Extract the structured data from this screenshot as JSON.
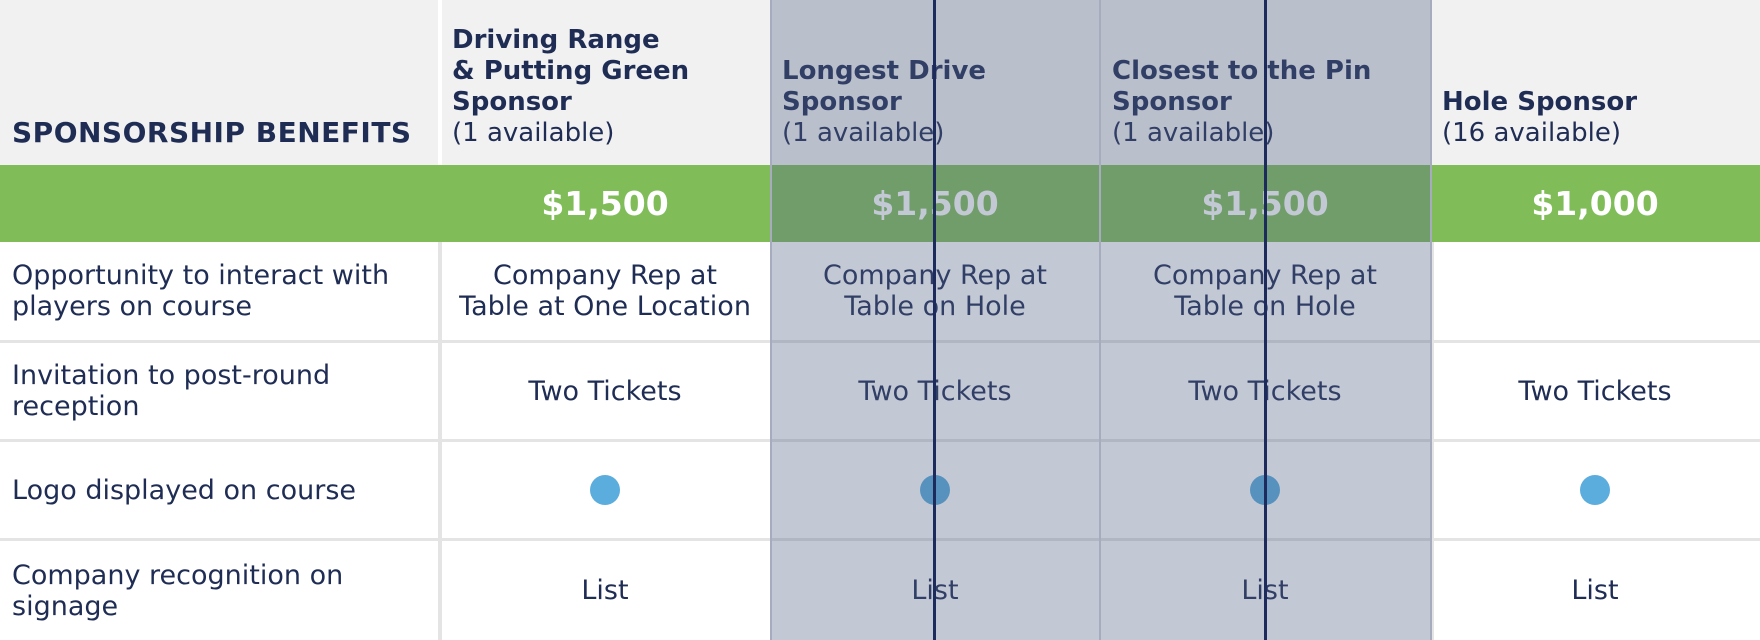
{
  "header": {
    "benefits_label": "SPONSORSHIP BENEFITS",
    "columns": [
      {
        "title": "Driving Range\n& Putting Green\nSponsor",
        "availability": "(1 available)",
        "price": "$1,500"
      },
      {
        "title": "Longest Drive\nSponsor",
        "availability": "(1 available)",
        "price": "$1,500"
      },
      {
        "title": "Closest to the Pin\nSponsor",
        "availability": "(1 available)",
        "price": "$1,500"
      },
      {
        "title": "Hole Sponsor",
        "availability": "(16 available)",
        "price": "$1,000"
      }
    ]
  },
  "rows": [
    {
      "label": "Opportunity to interact with players on course",
      "values": [
        "Company Rep at\nTable at One Location",
        "Company Rep at\nTable on Hole",
        "Company Rep at\nTable on Hole",
        ""
      ]
    },
    {
      "label": "Invitation to post-round reception",
      "values": [
        "Two Tickets",
        "Two Tickets",
        "Two Tickets",
        "Two Tickets"
      ]
    },
    {
      "label": "Logo displayed on course",
      "values": [
        "dot",
        "dot",
        "dot",
        "dot"
      ]
    },
    {
      "label": "Company recognition on signage",
      "values": [
        "List",
        "List",
        "List",
        "List"
      ]
    }
  ],
  "colors": {
    "header_bg": "#f1f1f1",
    "price_bar": "#80bd59",
    "text_navy": "#1f2d55",
    "dot_blue": "#5aaddd",
    "highlight_overlay": "#8a92ad",
    "marker_line": "#1d2b5c"
  },
  "icons": {
    "included_marker": "filled-circle-icon"
  }
}
